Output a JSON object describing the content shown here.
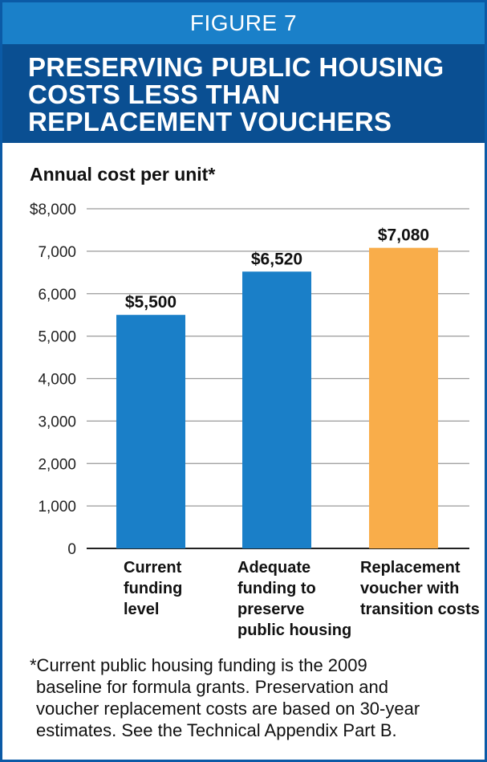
{
  "figure_label": "FIGURE 7",
  "title_lines": [
    "PRESERVING PUBLIC HOUSING",
    "COSTS LESS THAN",
    "REPLACEMENT VOUCHERS"
  ],
  "footnote_lines": [
    "*Current public housing funding is the 2009",
    "baseline for formula grants. Preservation and",
    "voucher replacement costs are based on 30-year",
    "estimates. See the Technical Appendix Part B."
  ],
  "colors": {
    "figure_band": "#1a80c9",
    "title_band": "#0a4f92",
    "bar_blue": "#1a7fc8",
    "bar_orange": "#f9ad4a",
    "frame": "#0b5aa6"
  },
  "chart_data": {
    "type": "bar",
    "ylabel": "Annual cost per unit*",
    "ylim": [
      0,
      8000
    ],
    "yticks": [
      0,
      1000,
      2000,
      3000,
      4000,
      5000,
      6000,
      7000,
      8000
    ],
    "ytick_labels": [
      "0",
      "1,000",
      "2,000",
      "3,000",
      "4,000",
      "5,000",
      "6,000",
      "7,000",
      "$8,000"
    ],
    "grid": true,
    "categories": [
      [
        "Current",
        "funding",
        "level"
      ],
      [
        "Adequate",
        "funding to",
        "preserve",
        "public housing"
      ],
      [
        "Replacement",
        "voucher with",
        "transition costs"
      ]
    ],
    "values": [
      5500,
      6520,
      7080
    ],
    "value_labels": [
      "$5,500",
      "$6,520",
      "$7,080"
    ],
    "bar_colors": [
      "#1a7fc8",
      "#1a7fc8",
      "#f9ad4a"
    ]
  }
}
